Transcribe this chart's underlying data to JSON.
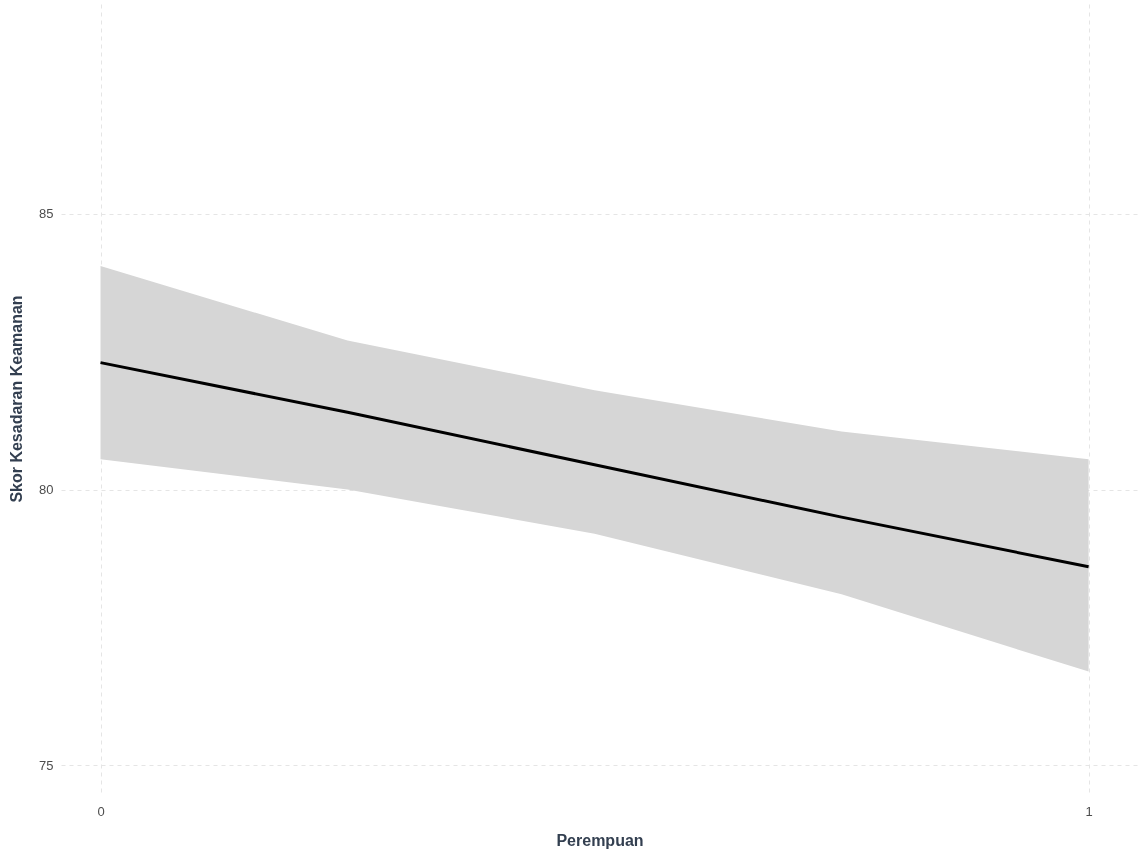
{
  "chart_data": {
    "type": "line",
    "xlabel": "Perempuan",
    "ylabel": "Skor Kesadaran Keamanan",
    "x": [
      0,
      0.25,
      0.5,
      0.75,
      1
    ],
    "series": [
      {
        "color": "#000000",
        "values": [
          82.3,
          81.4,
          80.45,
          79.5,
          78.6
        ],
        "lower": [
          80.55,
          80.0,
          79.2,
          78.1,
          76.7
        ],
        "upper": [
          84.05,
          82.7,
          81.8,
          81.05,
          80.55
        ]
      }
    ],
    "xlim": [
      -0.04,
      1.05
    ],
    "ylim": [
      74.5,
      88.8
    ],
    "xticks": [
      0,
      1
    ],
    "yticks": [
      75,
      80,
      85
    ],
    "grid": true,
    "marker": "none",
    "line_style": "solid"
  }
}
